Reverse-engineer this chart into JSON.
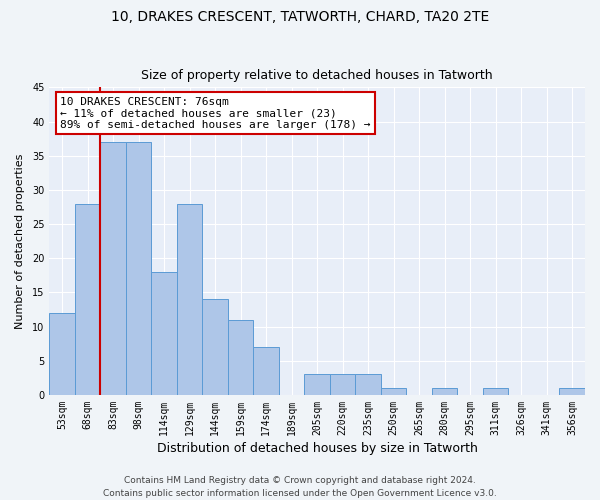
{
  "title1": "10, DRAKES CRESCENT, TATWORTH, CHARD, TA20 2TE",
  "title2": "Size of property relative to detached houses in Tatworth",
  "xlabel": "Distribution of detached houses by size in Tatworth",
  "ylabel": "Number of detached properties",
  "categories": [
    "53sqm",
    "68sqm",
    "83sqm",
    "98sqm",
    "114sqm",
    "129sqm",
    "144sqm",
    "159sqm",
    "174sqm",
    "189sqm",
    "205sqm",
    "220sqm",
    "235sqm",
    "250sqm",
    "265sqm",
    "280sqm",
    "295sqm",
    "311sqm",
    "326sqm",
    "341sqm",
    "356sqm"
  ],
  "values": [
    12,
    28,
    37,
    37,
    18,
    28,
    14,
    11,
    7,
    0,
    3,
    3,
    3,
    1,
    0,
    1,
    0,
    1,
    0,
    0,
    1
  ],
  "bar_color": "#aec6e8",
  "bar_edge_color": "#5b9bd5",
  "annotation_title": "10 DRAKES CRESCENT: 76sqm",
  "annotation_line1": "← 11% of detached houses are smaller (23)",
  "annotation_line2": "89% of semi-detached houses are larger (178) →",
  "annotation_box_color": "#ffffff",
  "annotation_box_edge": "#cc0000",
  "vline_color": "#cc0000",
  "vline_x": 1.5,
  "ylim": [
    0,
    45
  ],
  "yticks": [
    0,
    5,
    10,
    15,
    20,
    25,
    30,
    35,
    40,
    45
  ],
  "footer1": "Contains HM Land Registry data © Crown copyright and database right 2024.",
  "footer2": "Contains public sector information licensed under the Open Government Licence v3.0.",
  "bg_color": "#e8eef8",
  "grid_color": "#ffffff",
  "title1_fontsize": 10,
  "title2_fontsize": 9,
  "xlabel_fontsize": 9,
  "ylabel_fontsize": 8,
  "tick_fontsize": 7,
  "footer_fontsize": 6.5,
  "ann_fontsize": 8
}
